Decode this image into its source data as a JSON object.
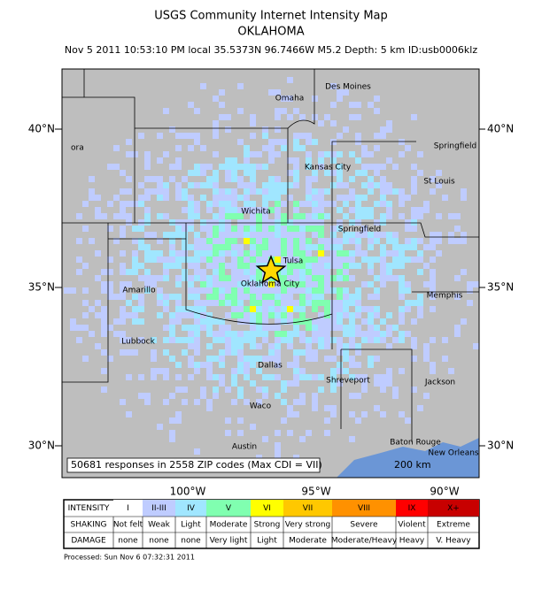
{
  "header": {
    "title": "USGS Community Internet Intensity Map",
    "region": "OKLAHOMA",
    "event": "Nov 5 2011 10:53:10 PM local 35.5373N 96.7466W M5.2 Depth: 5 km ID:usb0006klz"
  },
  "map": {
    "lat_labels": [
      "40°N",
      "35°N",
      "30°N"
    ],
    "lon_labels": [
      "100°W",
      "95°W",
      "90°W"
    ],
    "cities": [
      "Des Moines",
      "Omaha",
      "ora",
      "Kansas City",
      "Springfield",
      "St Louis",
      "Wichita",
      "Springfield",
      "Tulsa",
      "Oklahoma City",
      "Amarillo",
      "Memphis",
      "Lubbock",
      "Dallas",
      "Shreveport",
      "Jackson",
      "Waco",
      "Austin",
      "Baton Rouge",
      "New Orleans"
    ],
    "summary": "50681 responses in 2558 ZIP codes (Max CDI = VII)",
    "scale": "200 km"
  },
  "legend": {
    "row_labels": [
      "INTENSITY",
      "SHAKING",
      "DAMAGE"
    ],
    "columns": [
      {
        "intensity": "I",
        "shaking": "Not felt",
        "damage": "none",
        "color": "#ffffff"
      },
      {
        "intensity": "II-III",
        "shaking": "Weak",
        "damage": "none",
        "color": "#bfccff"
      },
      {
        "intensity": "IV",
        "shaking": "Light",
        "damage": "none",
        "color": "#a0e6ff"
      },
      {
        "intensity": "V",
        "shaking": "Moderate",
        "damage": "Very light",
        "color": "#80ffb0"
      },
      {
        "intensity": "VI",
        "shaking": "Strong",
        "damage": "Light",
        "color": "#ffff00"
      },
      {
        "intensity": "VII",
        "shaking": "Very strong",
        "damage": "Moderate",
        "color": "#ffc800"
      },
      {
        "intensity": "VIII",
        "shaking": "Severe",
        "damage": "Moderate/Heavy",
        "color": "#ff9100"
      },
      {
        "intensity": "IX",
        "shaking": "Violent",
        "damage": "Heavy",
        "color": "#ff0000"
      },
      {
        "intensity": "X+",
        "shaking": "Extreme",
        "damage": "V. Heavy",
        "color": "#c80000"
      }
    ]
  },
  "footer": "Processed: Sun Nov  6 07:32:31 2011"
}
